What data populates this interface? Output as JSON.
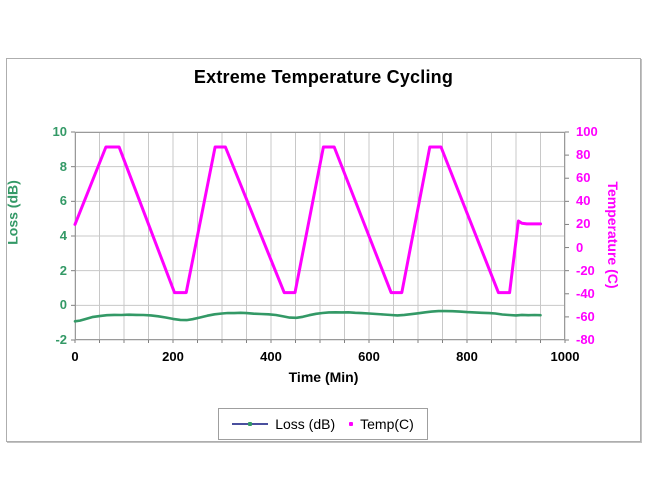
{
  "chart": {
    "title": "Extreme Temperature Cycling",
    "x_axis_label": "Time (Min)",
    "y_left_label": "Loss (dB)",
    "y_right_label": "Temperature (C)",
    "legend": {
      "loss_label": "Loss (dB)",
      "temp_label": "Temp(C)"
    },
    "colors": {
      "loss_line": "#339966",
      "temp_line": "#FF00FF",
      "legend_loss_line": "#4A4F9E",
      "legend_loss_dot": "#339966",
      "legend_temp_dot": "#FF00FF",
      "left_axis_text": "#339966",
      "right_axis_text": "#FF00FF",
      "gridline": "#c8c8c8",
      "plot_border": "#9a9a9a",
      "tick_mark": "#808080"
    }
  },
  "chart_data": {
    "type": "line",
    "title": "Extreme Temperature Cycling",
    "xlabel": "Time (Min)",
    "ylabel_left": "Loss (dB)",
    "ylabel_right": "Temperature (C)",
    "x_range": [
      0,
      1000
    ],
    "y_left_range": [
      -2,
      10
    ],
    "y_right_range": [
      -80,
      100
    ],
    "x_major_ticks": [
      0,
      200,
      400,
      600,
      800,
      1000
    ],
    "x_grid_step": 50,
    "y_left_ticks": [
      10,
      8,
      6,
      4,
      2,
      0,
      -2
    ],
    "y_right_ticks": [
      100,
      80,
      60,
      40,
      20,
      0,
      -20,
      -40,
      -60,
      -80
    ],
    "grid": true,
    "legend_position": "bottom",
    "series": [
      {
        "name": "Loss (dB)",
        "axis": "left",
        "color": "#339966",
        "points": [
          [
            0,
            -0.92
          ],
          [
            10,
            -0.88
          ],
          [
            20,
            -0.8
          ],
          [
            35,
            -0.68
          ],
          [
            50,
            -0.62
          ],
          [
            65,
            -0.57
          ],
          [
            80,
            -0.55
          ],
          [
            95,
            -0.56
          ],
          [
            110,
            -0.54
          ],
          [
            125,
            -0.55
          ],
          [
            140,
            -0.56
          ],
          [
            155,
            -0.58
          ],
          [
            170,
            -0.63
          ],
          [
            185,
            -0.7
          ],
          [
            200,
            -0.78
          ],
          [
            215,
            -0.84
          ],
          [
            228,
            -0.85
          ],
          [
            240,
            -0.8
          ],
          [
            255,
            -0.7
          ],
          [
            270,
            -0.6
          ],
          [
            285,
            -0.52
          ],
          [
            300,
            -0.47
          ],
          [
            312,
            -0.44
          ],
          [
            325,
            -0.45
          ],
          [
            338,
            -0.43
          ],
          [
            350,
            -0.45
          ],
          [
            365,
            -0.48
          ],
          [
            380,
            -0.5
          ],
          [
            395,
            -0.52
          ],
          [
            410,
            -0.56
          ],
          [
            425,
            -0.64
          ],
          [
            438,
            -0.71
          ],
          [
            452,
            -0.72
          ],
          [
            465,
            -0.66
          ],
          [
            478,
            -0.57
          ],
          [
            492,
            -0.49
          ],
          [
            505,
            -0.44
          ],
          [
            518,
            -0.41
          ],
          [
            532,
            -0.4
          ],
          [
            545,
            -0.41
          ],
          [
            558,
            -0.4
          ],
          [
            572,
            -0.43
          ],
          [
            585,
            -0.45
          ],
          [
            600,
            -0.47
          ],
          [
            615,
            -0.5
          ],
          [
            630,
            -0.53
          ],
          [
            645,
            -0.56
          ],
          [
            658,
            -0.58
          ],
          [
            672,
            -0.55
          ],
          [
            685,
            -0.51
          ],
          [
            700,
            -0.46
          ],
          [
            715,
            -0.4
          ],
          [
            728,
            -0.36
          ],
          [
            742,
            -0.33
          ],
          [
            755,
            -0.33
          ],
          [
            770,
            -0.34
          ],
          [
            785,
            -0.36
          ],
          [
            800,
            -0.39
          ],
          [
            815,
            -0.41
          ],
          [
            830,
            -0.43
          ],
          [
            845,
            -0.45
          ],
          [
            858,
            -0.47
          ],
          [
            872,
            -0.53
          ],
          [
            886,
            -0.56
          ],
          [
            900,
            -0.58
          ],
          [
            912,
            -0.55
          ],
          [
            925,
            -0.57
          ],
          [
            938,
            -0.56
          ],
          [
            950,
            -0.57
          ]
        ]
      },
      {
        "name": "Temp(C)",
        "axis": "right",
        "color": "#FF00FF",
        "points": [
          [
            0,
            20
          ],
          [
            63,
            87
          ],
          [
            90,
            87
          ],
          [
            203,
            -39
          ],
          [
            227,
            -39
          ],
          [
            286,
            87
          ],
          [
            307,
            87
          ],
          [
            427,
            -39
          ],
          [
            449,
            -39
          ],
          [
            507,
            87
          ],
          [
            529,
            87
          ],
          [
            645,
            -39
          ],
          [
            667,
            -39
          ],
          [
            724,
            87
          ],
          [
            747,
            87
          ],
          [
            864,
            -39
          ],
          [
            887,
            -39
          ],
          [
            905,
            23
          ],
          [
            912,
            21
          ],
          [
            922,
            20.5
          ],
          [
            950,
            20.5
          ]
        ]
      }
    ]
  }
}
